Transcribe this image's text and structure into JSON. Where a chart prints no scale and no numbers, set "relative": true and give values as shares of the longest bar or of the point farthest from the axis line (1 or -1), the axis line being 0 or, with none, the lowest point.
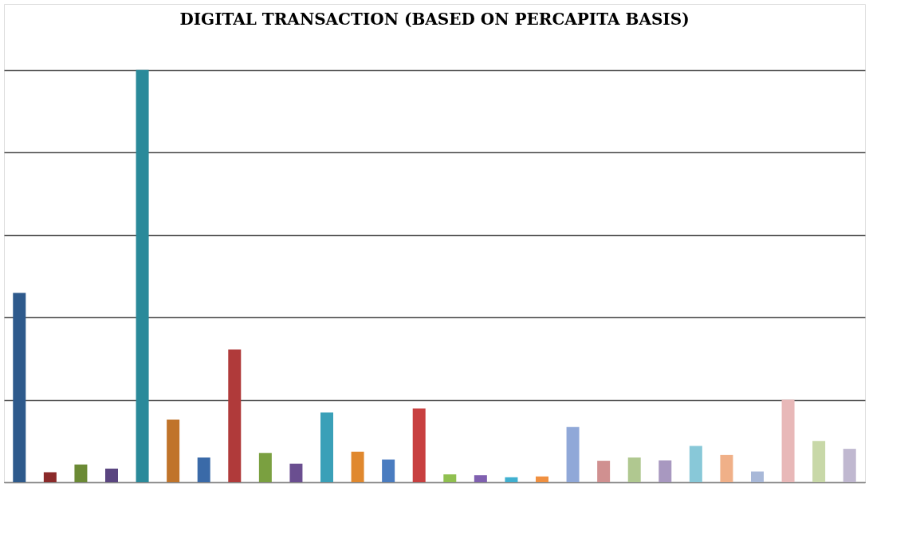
{
  "chart_data": {
    "type": "bar",
    "title": "DIGITAL TRANSACTION (BASED ON PERCAPITA BASIS)",
    "relative": true,
    "grid": "y",
    "categories": [
      null,
      null,
      null,
      null,
      null,
      null,
      null,
      null,
      null,
      null,
      null,
      null,
      null,
      null,
      null,
      null,
      null,
      null,
      null,
      null,
      null,
      null,
      null,
      null,
      null,
      null,
      null,
      null
    ],
    "values": [
      0.459,
      0.024,
      0.043,
      0.033,
      1,
      0.152,
      0.06,
      0.322,
      0.071,
      0.045,
      0.169,
      0.074,
      0.055,
      0.179,
      0.019,
      0.017,
      0.012,
      0.014,
      0.134,
      0.052,
      0.06,
      0.053,
      0.088,
      0.066,
      0.026,
      0.2,
      0.1,
      0.081
    ],
    "colors": [
      "#2e5a8c",
      "#8b2a2a",
      "#6b8a35",
      "#5a4580",
      "#2a8a9a",
      "#c0742a",
      "#3a6aa8",
      "#b03a3a",
      "#7aa040",
      "#6a4e90",
      "#3aa0b8",
      "#e0882e",
      "#4a7cc0",
      "#c84040",
      "#90c050",
      "#8060b0",
      "#40b0d0",
      "#f09040",
      "#90a8d8",
      "#d09090",
      "#b0c890",
      "#a898c0",
      "#88c8d8",
      "#f0b088",
      "#a8b8d8",
      "#e8b8b8",
      "#c8d8a8",
      "#c0b8d0"
    ]
  }
}
